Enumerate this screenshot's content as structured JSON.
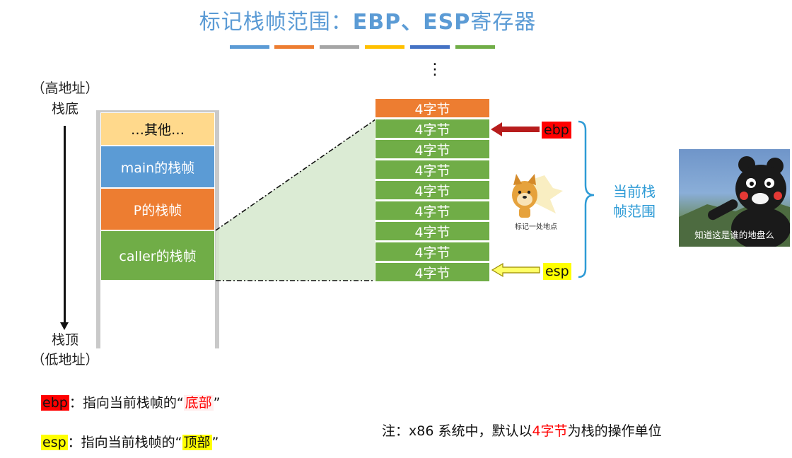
{
  "title": {
    "main": "标记栈帧范围：",
    "bold": "EBP、ESP",
    "tail": "寄存器"
  },
  "title_bar_colors": [
    "#5b9bd5",
    "#ed7d31",
    "#a5a5a5",
    "#ffc000",
    "#4472c4",
    "#70ad47"
  ],
  "left": {
    "high_addr": "（高地址）",
    "stack_bottom": "栈底",
    "stack_top": "栈顶",
    "low_addr": "（低地址）",
    "blocks": [
      {
        "label": "…其他…",
        "color": "#ffd98c",
        "text_color": "#111111"
      },
      {
        "label": "main的栈帧",
        "color": "#5b9bd5",
        "text_color": "#ffffff"
      },
      {
        "label": "P的栈帧",
        "color": "#ed7d31",
        "text_color": "#ffffff"
      },
      {
        "label": "caller的栈帧",
        "color": "#70ad47",
        "text_color": "#ffffff"
      }
    ]
  },
  "right": {
    "dots": "⋮",
    "cells": [
      "4字节",
      "4字节",
      "4字节",
      "4字节",
      "4字节",
      "4字节",
      "4字节",
      "4字节",
      "4字节"
    ],
    "ebp_tag": "ebp",
    "esp_tag": "esp",
    "brace_label_line1": "当前栈",
    "brace_label_line2": "帧范围",
    "doge_caption": "标记一处地点",
    "kuma_caption": "知道这是谁的地盘么"
  },
  "notes": {
    "ebp_tag": "ebp",
    "ebp_text": "：指向当前栈帧的“",
    "ebp_hl": "底部",
    "ebp_close": "”",
    "esp_tag": "esp",
    "esp_text": "：指向当前栈帧的“",
    "esp_hl": "顶部",
    "esp_close": "”",
    "unit_prefix": "注：x86 系统中，默认以",
    "unit_hl": "4字节",
    "unit_suffix": "为栈的操作单位"
  }
}
